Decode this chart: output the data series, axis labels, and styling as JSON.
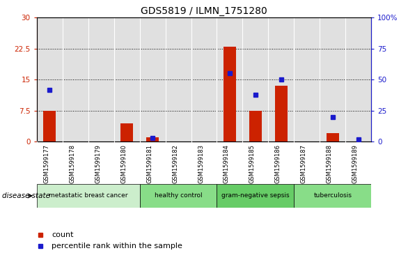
{
  "title": "GDS5819 / ILMN_1751280",
  "samples": [
    "GSM1599177",
    "GSM1599178",
    "GSM1599179",
    "GSM1599180",
    "GSM1599181",
    "GSM1599182",
    "GSM1599183",
    "GSM1599184",
    "GSM1599185",
    "GSM1599186",
    "GSM1599187",
    "GSM1599188",
    "GSM1599189"
  ],
  "counts": [
    7.5,
    0,
    0,
    4.5,
    1.0,
    0,
    0,
    23.0,
    7.5,
    13.5,
    0,
    2.0,
    0
  ],
  "percentiles": [
    42,
    0,
    0,
    0,
    3,
    0,
    0,
    55,
    38,
    50,
    0,
    20,
    2
  ],
  "ylim_left": [
    0,
    30
  ],
  "ylim_right": [
    0,
    100
  ],
  "yticks_left": [
    0,
    7.5,
    15,
    22.5,
    30
  ],
  "yticks_right": [
    0,
    25,
    50,
    75,
    100
  ],
  "bar_color": "#cc2200",
  "dot_color": "#1a1acc",
  "groups": [
    {
      "label": "metastatic breast cancer",
      "start": 0,
      "end": 3,
      "color": "#cceecc"
    },
    {
      "label": "healthy control",
      "start": 4,
      "end": 6,
      "color": "#88dd88"
    },
    {
      "label": "gram-negative sepsis",
      "start": 7,
      "end": 9,
      "color": "#66cc66"
    },
    {
      "label": "tuberculosis",
      "start": 10,
      "end": 12,
      "color": "#88dd88"
    }
  ],
  "disease_state_label": "disease state",
  "legend_count": "count",
  "legend_percentile": "percentile rank within the sample",
  "col_bg": "#e0e0e0",
  "plot_bg": "#ffffff"
}
